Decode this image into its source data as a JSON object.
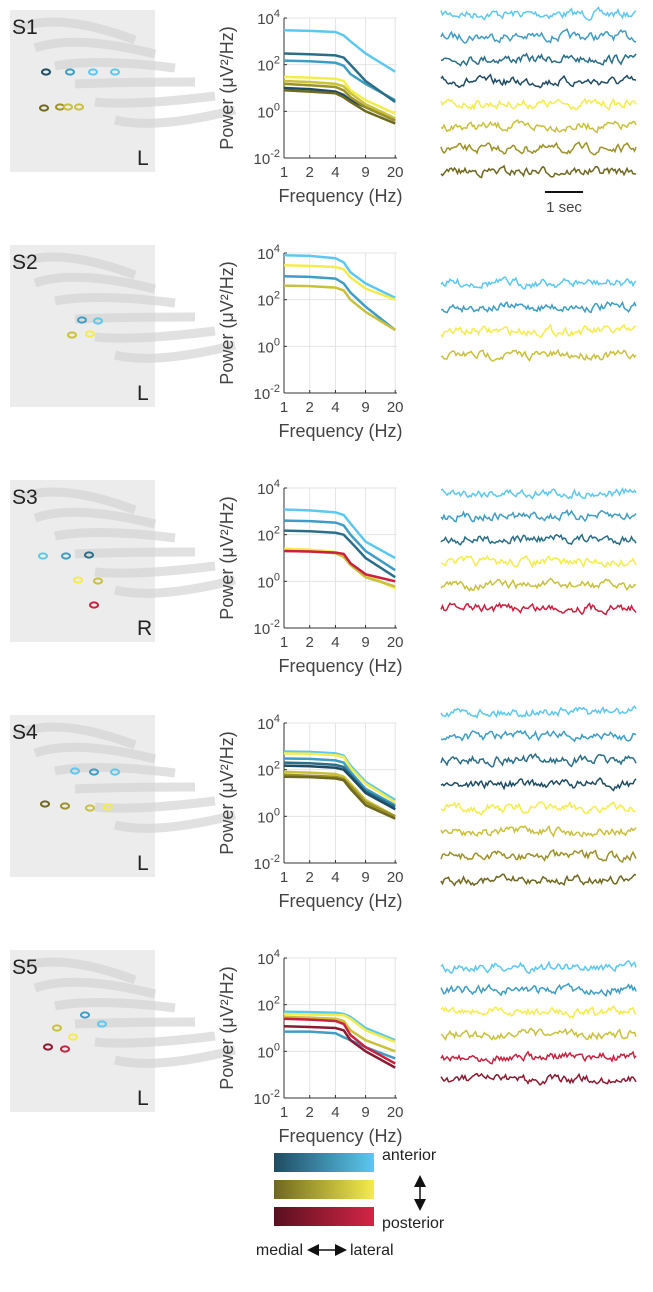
{
  "chart_data": [
    {
      "type": "line",
      "subject": "S1",
      "hemisphere": "L",
      "ylabel": "Power (μV²/Hz)",
      "xlabel": "Frequency (Hz)",
      "x": [
        1,
        2,
        4,
        5,
        6,
        9,
        20
      ],
      "xlim": [
        1,
        21
      ],
      "xticks": [
        1,
        2,
        4,
        9,
        20
      ],
      "xscale": "log",
      "ylim": [
        0.01,
        10000
      ],
      "yscale": "log",
      "grid": true,
      "yticks": [
        {
          "value": 0.01,
          "label": "10^-2"
        },
        {
          "value": 1,
          "label": "10^0"
        },
        {
          "value": 100,
          "label": "10^2"
        },
        {
          "value": 10000,
          "label": "10^4"
        }
      ],
      "series": [
        {
          "color": "#5cc8ef",
          "values": [
            3000,
            2800,
            2500,
            1800,
            1000,
            300,
            50
          ]
        },
        {
          "color": "#3f9dc4",
          "values": [
            150,
            140,
            120,
            90,
            40,
            15,
            3
          ]
        },
        {
          "color": "#2b6e88",
          "values": [
            300,
            280,
            250,
            200,
            100,
            20,
            2.5
          ]
        },
        {
          "color": "#1f4c62",
          "values": [
            10,
            9,
            7,
            5,
            3,
            1.5,
            0.4
          ]
        },
        {
          "color": "#f4ec4c",
          "values": [
            30,
            28,
            25,
            20,
            8,
            3,
            0.8
          ]
        },
        {
          "color": "#c9c03c",
          "values": [
            20,
            18,
            15,
            12,
            6,
            2,
            0.5
          ]
        },
        {
          "color": "#9c9228",
          "values": [
            15,
            13,
            11,
            8,
            4,
            1.5,
            0.4
          ]
        },
        {
          "color": "#6e6820",
          "values": [
            8,
            7,
            6,
            4,
            2.5,
            1,
            0.3
          ]
        }
      ]
    },
    {
      "type": "line",
      "subject": "S2",
      "hemisphere": "L",
      "ylabel": "Power (μV²/Hz)",
      "xlabel": "Frequency (Hz)",
      "x": [
        1,
        2,
        4,
        5,
        6,
        9,
        20
      ],
      "xlim": [
        1,
        21
      ],
      "xticks": [
        1,
        2,
        4,
        9,
        20
      ],
      "xscale": "log",
      "ylim": [
        0.01,
        10000
      ],
      "yscale": "log",
      "grid": true,
      "yticks": [
        {
          "value": 0.01,
          "label": "10^-2"
        },
        {
          "value": 1,
          "label": "10^0"
        },
        {
          "value": 100,
          "label": "10^2"
        },
        {
          "value": 10000,
          "label": "10^4"
        }
      ],
      "series": [
        {
          "color": "#5cc8ef",
          "values": [
            8000,
            7500,
            6000,
            4000,
            1500,
            500,
            120
          ]
        },
        {
          "color": "#3f9dc4",
          "values": [
            1000,
            950,
            800,
            500,
            200,
            50,
            5
          ]
        },
        {
          "color": "#f4ec4c",
          "values": [
            3000,
            2800,
            2500,
            2000,
            900,
            300,
            100
          ]
        },
        {
          "color": "#c9c03c",
          "values": [
            400,
            380,
            330,
            250,
            100,
            30,
            5
          ]
        }
      ]
    },
    {
      "type": "line",
      "subject": "S3",
      "hemisphere": "R",
      "ylabel": "Power (μV²/Hz)",
      "xlabel": "Frequency (Hz)",
      "x": [
        1,
        2,
        4,
        5,
        6,
        9,
        20
      ],
      "xlim": [
        1,
        21
      ],
      "xticks": [
        1,
        2,
        4,
        9,
        20
      ],
      "xscale": "log",
      "ylim": [
        0.01,
        10000
      ],
      "yscale": "log",
      "grid": true,
      "yticks": [
        {
          "value": 0.01,
          "label": "10^-2"
        },
        {
          "value": 1,
          "label": "10^0"
        },
        {
          "value": 100,
          "label": "10^2"
        },
        {
          "value": 10000,
          "label": "10^4"
        }
      ],
      "series": [
        {
          "color": "#5cc8ef",
          "values": [
            1200,
            1100,
            900,
            700,
            300,
            50,
            10
          ]
        },
        {
          "color": "#3f9dc4",
          "values": [
            400,
            380,
            330,
            250,
            100,
            20,
            3
          ]
        },
        {
          "color": "#2b6e88",
          "values": [
            150,
            140,
            120,
            100,
            50,
            10,
            1.5
          ]
        },
        {
          "color": "#f4ec4c",
          "values": [
            25,
            23,
            18,
            12,
            5,
            2,
            0.5
          ]
        },
        {
          "color": "#c9c03c",
          "values": [
            20,
            19,
            16,
            11,
            5,
            1.5,
            0.6
          ]
        },
        {
          "color": "#c9213f",
          "values": [
            20,
            19,
            17,
            15,
            6,
            2,
            1
          ]
        }
      ]
    },
    {
      "type": "line",
      "subject": "S4",
      "hemisphere": "L",
      "ylabel": "Power (μV²/Hz)",
      "xlabel": "Frequency (Hz)",
      "x": [
        1,
        2,
        4,
        5,
        6,
        9,
        20
      ],
      "xlim": [
        1,
        21
      ],
      "xticks": [
        1,
        2,
        4,
        9,
        20
      ],
      "xscale": "log",
      "ylim": [
        0.01,
        10000
      ],
      "yscale": "log",
      "grid": true,
      "yticks": [
        {
          "value": 0.01,
          "label": "10^-2"
        },
        {
          "value": 1,
          "label": "10^0"
        },
        {
          "value": 100,
          "label": "10^2"
        },
        {
          "value": 10000,
          "label": "10^4"
        }
      ],
      "series": [
        {
          "color": "#5cc8ef",
          "values": [
            600,
            580,
            500,
            400,
            150,
            30,
            5
          ]
        },
        {
          "color": "#3f9dc4",
          "values": [
            300,
            290,
            250,
            200,
            80,
            15,
            3
          ]
        },
        {
          "color": "#2b6e88",
          "values": [
            200,
            190,
            160,
            130,
            60,
            12,
            2.5
          ]
        },
        {
          "color": "#1f4c62",
          "values": [
            150,
            140,
            120,
            100,
            50,
            10,
            2
          ]
        },
        {
          "color": "#f4ec4c",
          "values": [
            500,
            480,
            420,
            350,
            120,
            25,
            4
          ]
        },
        {
          "color": "#c9c03c",
          "values": [
            80,
            75,
            65,
            50,
            25,
            5,
            1
          ]
        },
        {
          "color": "#9c9228",
          "values": [
            60,
            55,
            50,
            40,
            20,
            4,
            1
          ]
        },
        {
          "color": "#6e6820",
          "values": [
            50,
            48,
            42,
            35,
            15,
            3,
            0.8
          ]
        }
      ]
    },
    {
      "type": "line",
      "subject": "S5",
      "hemisphere": "L",
      "ylabel": "Power (μV²/Hz)",
      "xlabel": "Frequency (Hz)",
      "x": [
        1,
        2,
        4,
        5,
        6,
        9,
        20
      ],
      "xlim": [
        1,
        21
      ],
      "xticks": [
        1,
        2,
        4,
        9,
        20
      ],
      "xscale": "log",
      "ylim": [
        0.01,
        10000
      ],
      "yscale": "log",
      "grid": true,
      "yticks": [
        {
          "value": 0.01,
          "label": "10^-2"
        },
        {
          "value": 1,
          "label": "10^0"
        },
        {
          "value": 100,
          "label": "10^2"
        },
        {
          "value": 10000,
          "label": "10^4"
        }
      ],
      "series": [
        {
          "color": "#5cc8ef",
          "values": [
            50,
            48,
            45,
            40,
            30,
            10,
            3
          ]
        },
        {
          "color": "#3f9dc4",
          "values": [
            7,
            7,
            6,
            4,
            3,
            1.5,
            0.5
          ]
        },
        {
          "color": "#f4ec4c",
          "values": [
            40,
            38,
            36,
            35,
            25,
            8,
            2.5
          ]
        },
        {
          "color": "#c9c03c",
          "values": [
            30,
            28,
            25,
            20,
            8,
            3,
            1
          ]
        },
        {
          "color": "#c9213f",
          "values": [
            25,
            23,
            20,
            15,
            5,
            1.5,
            0.3
          ]
        },
        {
          "color": "#8b1a30",
          "values": [
            12,
            11,
            10,
            8,
            3,
            1,
            0.2
          ]
        }
      ]
    }
  ],
  "scale_bar": "1 sec",
  "legend": {
    "anterior": "anterior",
    "posterior": "posterior",
    "medial": "medial",
    "lateral": "lateral"
  }
}
